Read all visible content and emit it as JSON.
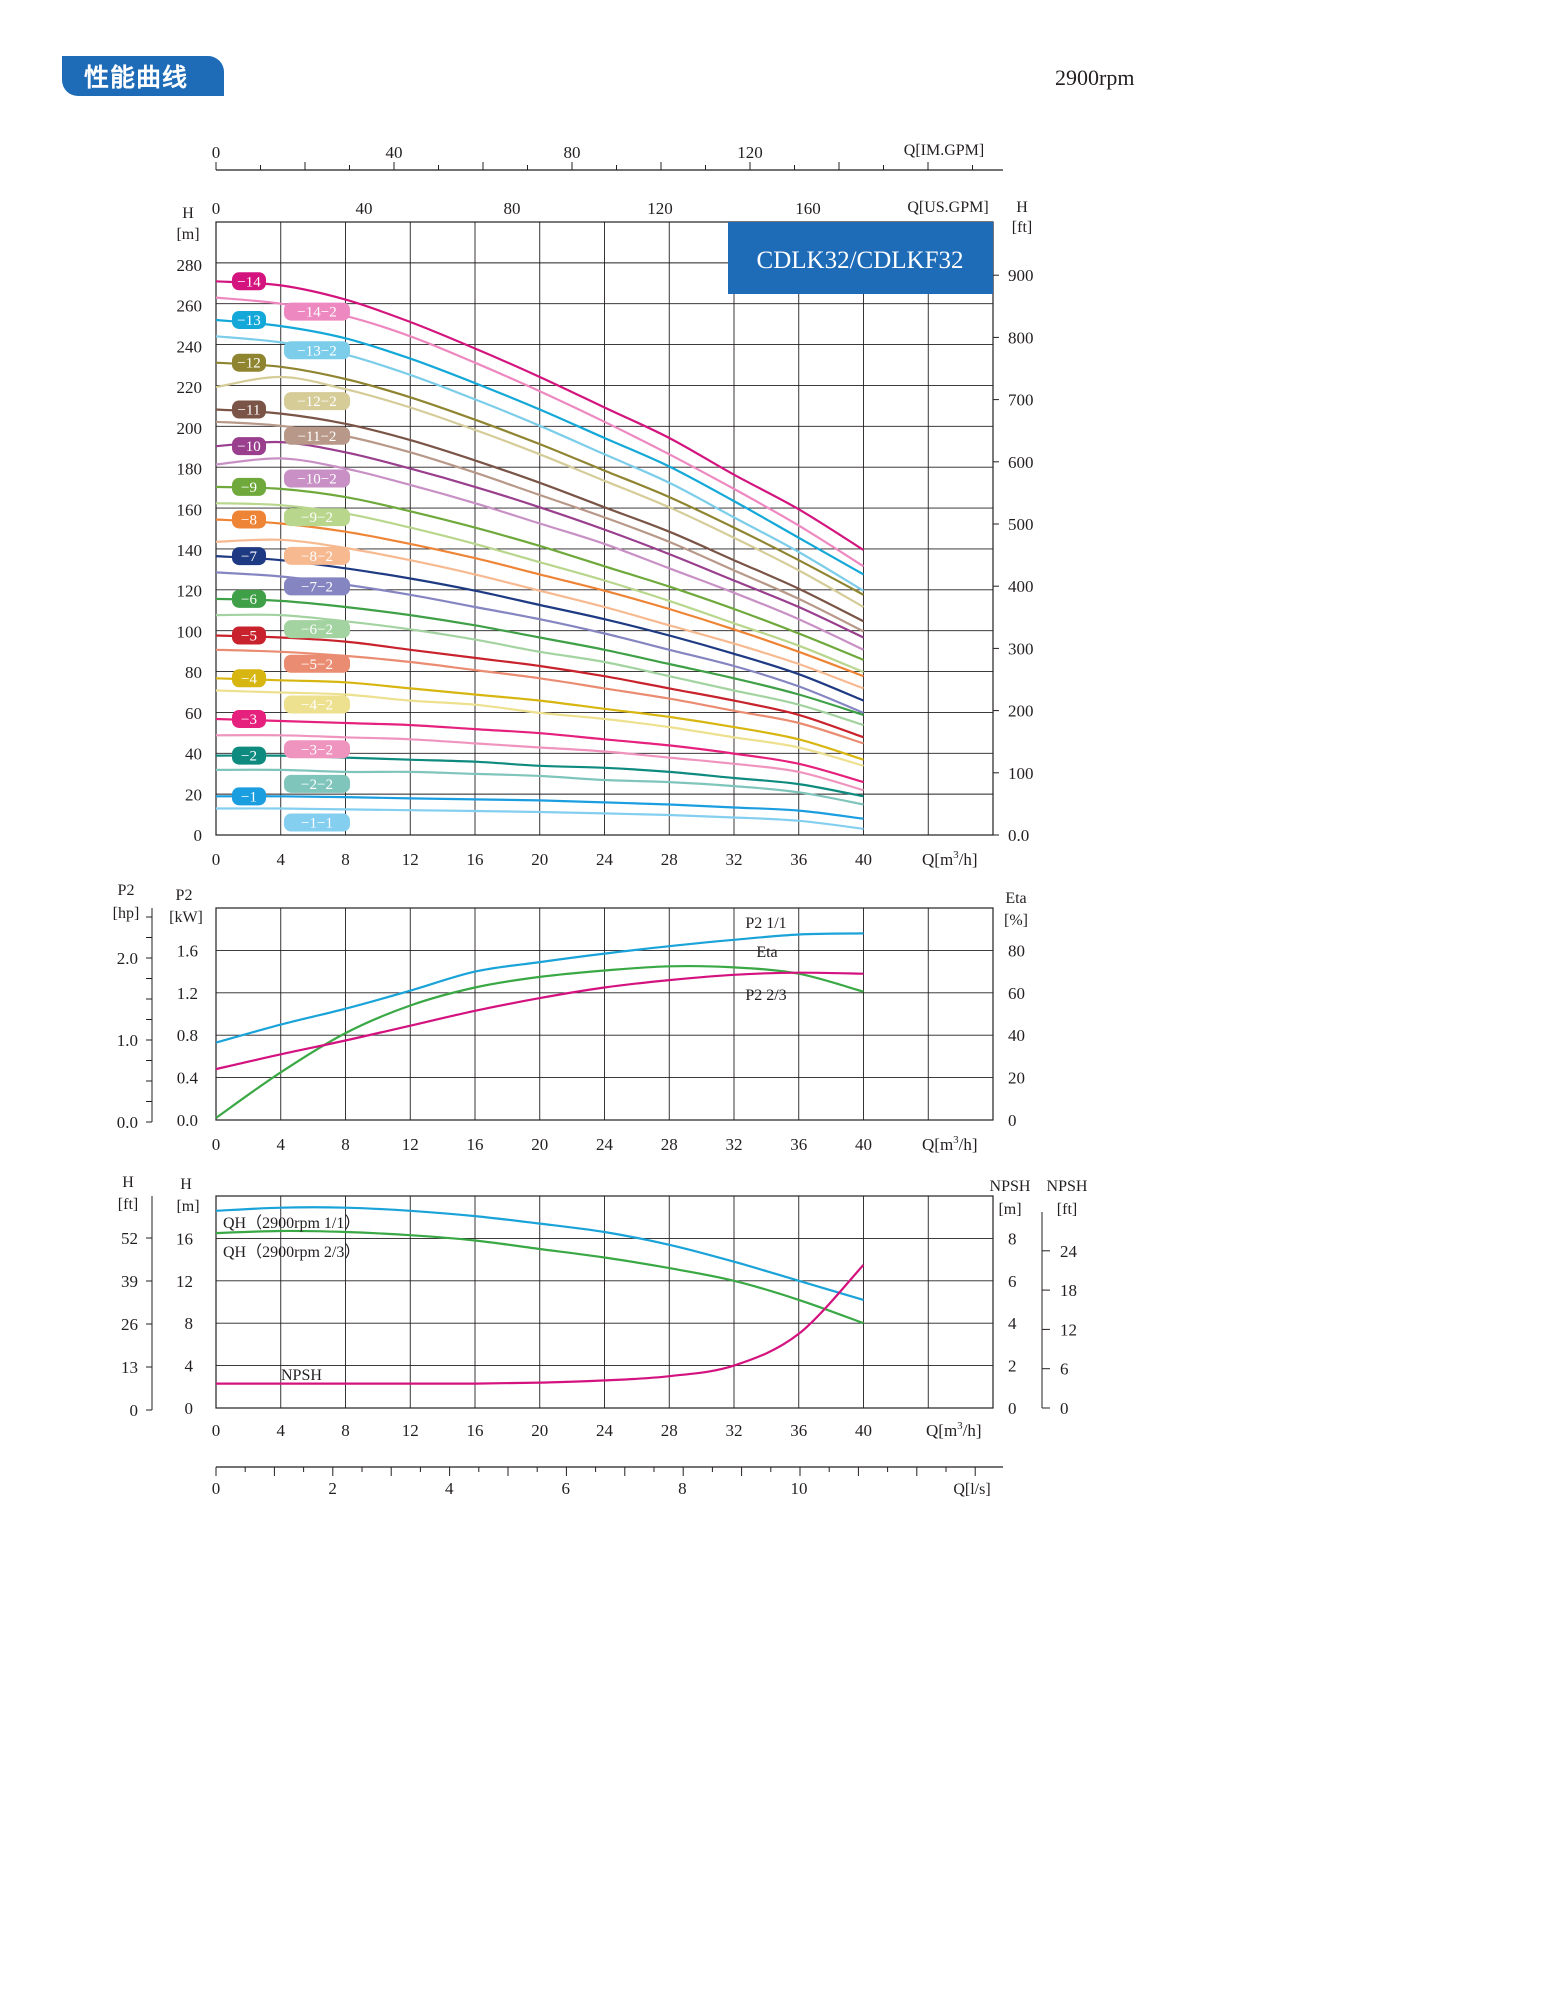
{
  "header": {
    "title": "性能曲线",
    "speed": "2900rpm"
  },
  "model_box": {
    "label": "CDLK32/CDLKF32",
    "color": "#1e6bb8"
  },
  "chart_data": [
    {
      "type": "line",
      "x_label": "Q[m³/h]",
      "x_unit_label": "Q[m",
      "x_ticks": [
        0,
        4,
        8,
        12,
        16,
        20,
        24,
        28,
        32,
        36,
        40
      ],
      "xlim": [
        0,
        48
      ],
      "ylabel_left": [
        "H",
        "[m]"
      ],
      "ylabel_right": [
        "H",
        "[ft]"
      ],
      "y_ticks_left": [
        0,
        20,
        40,
        60,
        80,
        100,
        120,
        140,
        160,
        180,
        200,
        220,
        240,
        260,
        280
      ],
      "ylim": [
        0,
        280
      ],
      "y_ticks_right": [
        "0.0",
        "100",
        "200",
        "300",
        "400",
        "500",
        "600",
        "700",
        "800",
        "900"
      ],
      "top_axis_us": {
        "label": "Q[US.GPM]",
        "ticks": [
          "0",
          "40",
          "80",
          "120",
          "160"
        ]
      },
      "top_axis_im": {
        "label": "Q[IM.GPM]",
        "ticks": [
          "0",
          "40",
          "80",
          "120"
        ]
      },
      "grid": true,
      "x": [
        0,
        4,
        8,
        12,
        16,
        20,
        24,
        28,
        32,
        36,
        40
      ],
      "series": [
        {
          "name": "-14",
          "color": "#d4147e",
          "values": [
            272,
            270,
            263,
            252,
            239,
            225,
            210,
            195,
            177,
            160,
            140
          ]
        },
        {
          "name": "-14-2",
          "color": "#ee88c0",
          "values": [
            264,
            261,
            255,
            245,
            232,
            218,
            203,
            187,
            170,
            152,
            132
          ]
        },
        {
          "name": "-13",
          "color": "#13a8d8",
          "values": [
            253,
            250,
            244,
            234,
            222,
            209,
            195,
            181,
            164,
            146,
            128
          ]
        },
        {
          "name": "-13-2",
          "color": "#7ccde9",
          "values": [
            245,
            242,
            236,
            226,
            214,
            201,
            187,
            173,
            156,
            139,
            120
          ]
        },
        {
          "name": "-12",
          "color": "#8f8531",
          "values": [
            232,
            230,
            224,
            215,
            204,
            192,
            179,
            166,
            151,
            135,
            118
          ]
        },
        {
          "name": "-12-2",
          "color": "#d5cc98",
          "values": [
            220,
            225,
            219,
            210,
            199,
            187,
            174,
            161,
            146,
            130,
            112
          ]
        },
        {
          "name": "-11",
          "color": "#7a5446",
          "values": [
            209,
            207,
            202,
            194,
            184,
            173,
            161,
            149,
            135,
            121,
            105
          ]
        },
        {
          "name": "-11-2",
          "color": "#b89888",
          "values": [
            203,
            201,
            196,
            188,
            178,
            167,
            156,
            144,
            130,
            116,
            100
          ]
        },
        {
          "name": "-10",
          "color": "#993f8e",
          "values": [
            191,
            193,
            188,
            180,
            171,
            161,
            150,
            138,
            125,
            112,
            97
          ]
        },
        {
          "name": "-10-2",
          "color": "#c890c4",
          "values": [
            182,
            185,
            180,
            172,
            163,
            153,
            143,
            131,
            119,
            106,
            91
          ]
        },
        {
          "name": "-9",
          "color": "#6fa93c",
          "values": [
            171,
            170,
            166,
            159,
            151,
            142,
            132,
            122,
            111,
            99,
            86
          ]
        },
        {
          "name": "-9-2",
          "color": "#b8d68c",
          "values": [
            163,
            162,
            158,
            151,
            143,
            134,
            125,
            115,
            104,
            93,
            80
          ]
        },
        {
          "name": "-8",
          "color": "#ee8436",
          "values": [
            155,
            153,
            149,
            143,
            136,
            128,
            120,
            111,
            101,
            90,
            78
          ]
        },
        {
          "name": "-8-2",
          "color": "#f7b990",
          "values": [
            144,
            145,
            141,
            135,
            128,
            120,
            112,
            103,
            94,
            84,
            72
          ]
        },
        {
          "name": "-7",
          "color": "#1e3a83",
          "values": [
            137,
            135,
            131,
            126,
            120,
            113,
            106,
            98,
            89,
            79,
            66
          ]
        },
        {
          "name": "-7-2",
          "color": "#8585c2",
          "values": [
            129,
            127,
            123,
            118,
            112,
            106,
            99,
            91,
            83,
            73,
            60
          ]
        },
        {
          "name": "-6",
          "color": "#3fa047",
          "values": [
            116,
            115,
            112,
            108,
            103,
            97,
            91,
            84,
            77,
            69,
            59
          ]
        },
        {
          "name": "-6-2",
          "color": "#a3d3a0",
          "values": [
            108,
            108,
            105,
            101,
            96,
            90,
            85,
            78,
            71,
            64,
            54
          ]
        },
        {
          "name": "-5",
          "color": "#c8232c",
          "values": [
            98,
            97,
            95,
            91,
            87,
            83,
            78,
            72,
            66,
            59,
            48
          ]
        },
        {
          "name": "-5-2",
          "color": "#ea8c72",
          "values": [
            91,
            90,
            88,
            85,
            81,
            77,
            72,
            67,
            61,
            55,
            45
          ]
        },
        {
          "name": "-4",
          "color": "#d7b611",
          "values": [
            77,
            76,
            75,
            72,
            69,
            66,
            62,
            58,
            53,
            47,
            37
          ]
        },
        {
          "name": "-4-2",
          "color": "#ede08f",
          "values": [
            71,
            70,
            69,
            66,
            64,
            60,
            57,
            53,
            48,
            43,
            34
          ]
        },
        {
          "name": "-3",
          "color": "#e5217d",
          "values": [
            57,
            56,
            55,
            54,
            52,
            50,
            47,
            44,
            40,
            35,
            26
          ]
        },
        {
          "name": "-3-2",
          "color": "#ef94be",
          "values": [
            49,
            49,
            48,
            47,
            45,
            43,
            41,
            38,
            35,
            31,
            22
          ]
        },
        {
          "name": "-2",
          "color": "#0e8a7f",
          "values": [
            39,
            39,
            38,
            37,
            36,
            34,
            33,
            31,
            28,
            25,
            19
          ]
        },
        {
          "name": "-2-2",
          "color": "#80c5bc",
          "values": [
            32,
            32,
            31,
            31,
            30,
            29,
            27,
            26,
            24,
            21,
            15
          ]
        },
        {
          "name": "-1",
          "color": "#1a9ee0",
          "values": [
            19,
            19,
            18.6,
            18,
            17.5,
            17,
            16,
            15,
            13.5,
            12,
            8
          ]
        },
        {
          "name": "-1-1",
          "color": "#84cff0",
          "values": [
            13,
            13,
            12.6,
            12.2,
            11.8,
            11.3,
            10.6,
            9.8,
            8.6,
            7,
            3
          ]
        }
      ]
    },
    {
      "type": "line",
      "x_label": "Q[m³/h]",
      "x_unit_label": "Q[m",
      "x_ticks": [
        0,
        4,
        8,
        12,
        16,
        20,
        24,
        28,
        32,
        36,
        40
      ],
      "xlim": [
        0,
        48
      ],
      "ylabel_left": [
        "P2",
        "[kW]"
      ],
      "ylabel_left_outer": [
        "P2",
        "[hp]"
      ],
      "ylabel_right": [
        "Eta",
        "[%]"
      ],
      "y_ticks_left": [
        "0.0",
        "0.4",
        "0.8",
        "1.2",
        "1.6"
      ],
      "ylim": [
        0,
        2.0
      ],
      "y_ticks_outer": [
        "0.0",
        "1.0",
        "2.0"
      ],
      "y_ticks_right": [
        "0",
        "20",
        "40",
        "60",
        "80"
      ],
      "grid": true,
      "x": [
        0,
        4,
        8,
        12,
        16,
        20,
        24,
        28,
        32,
        36,
        40
      ],
      "series": [
        {
          "name": "P2 1/1",
          "color": "#1aa3d8",
          "values": [
            0.73,
            0.9,
            1.05,
            1.22,
            1.4,
            1.49,
            1.57,
            1.64,
            1.7,
            1.75,
            1.76
          ]
        },
        {
          "name": "Eta",
          "color": "#3aa845",
          "values": [
            0.02,
            0.45,
            0.82,
            1.08,
            1.25,
            1.35,
            1.41,
            1.45,
            1.44,
            1.38,
            1.21
          ]
        },
        {
          "name": "P2 2/3",
          "color": "#d4127f",
          "values": [
            0.48,
            0.62,
            0.75,
            0.89,
            1.03,
            1.15,
            1.25,
            1.32,
            1.37,
            1.39,
            1.38
          ]
        }
      ]
    },
    {
      "type": "line",
      "x_label": "Q[m³/h]",
      "x_unit_label": "Q[m",
      "x_ticks": [
        0,
        4,
        8,
        12,
        16,
        20,
        24,
        28,
        32,
        36,
        40
      ],
      "xlim": [
        0,
        48
      ],
      "ylabel_left": [
        "H",
        "[m]"
      ],
      "ylabel_left_outer": [
        "H",
        "[ft]"
      ],
      "ylabel_right": [
        "NPSH",
        "[m]"
      ],
      "ylabel_right_outer": [
        "NPSH",
        "[ft]"
      ],
      "y_ticks_left": [
        "0",
        "4",
        "8",
        "12",
        "16"
      ],
      "ylim": [
        0,
        20
      ],
      "y_ticks_outer": [
        "0",
        "13",
        "26",
        "39",
        "52"
      ],
      "y_ticks_right": [
        "0",
        "2",
        "4",
        "6",
        "8"
      ],
      "y_ticks_right_outer": [
        "0",
        "6",
        "12",
        "18",
        "24"
      ],
      "lps_axis": {
        "label": "Q[l/s]",
        "ticks": [
          "0",
          "2",
          "4",
          "6",
          "8",
          "10"
        ]
      },
      "grid": true,
      "x": [
        0,
        4,
        8,
        12,
        16,
        20,
        24,
        28,
        32,
        36,
        40
      ],
      "series": [
        {
          "name": "QH（2900rpm 1/1）",
          "color": "#1aa3d8",
          "values": [
            18.6,
            18.9,
            18.9,
            18.6,
            18.1,
            17.4,
            16.6,
            15.4,
            13.8,
            12.0,
            10.2
          ]
        },
        {
          "name": "QH（2900rpm 2/3）",
          "color": "#3aa845",
          "values": [
            16.5,
            16.7,
            16.6,
            16.3,
            15.8,
            15.0,
            14.2,
            13.2,
            12.0,
            10.2,
            8.0
          ]
        },
        {
          "name": "NPSH",
          "color": "#d4127f",
          "values": [
            2.3,
            2.3,
            2.3,
            2.3,
            2.3,
            2.4,
            2.6,
            3.0,
            4.0,
            7.0,
            13.5
          ]
        }
      ]
    }
  ]
}
